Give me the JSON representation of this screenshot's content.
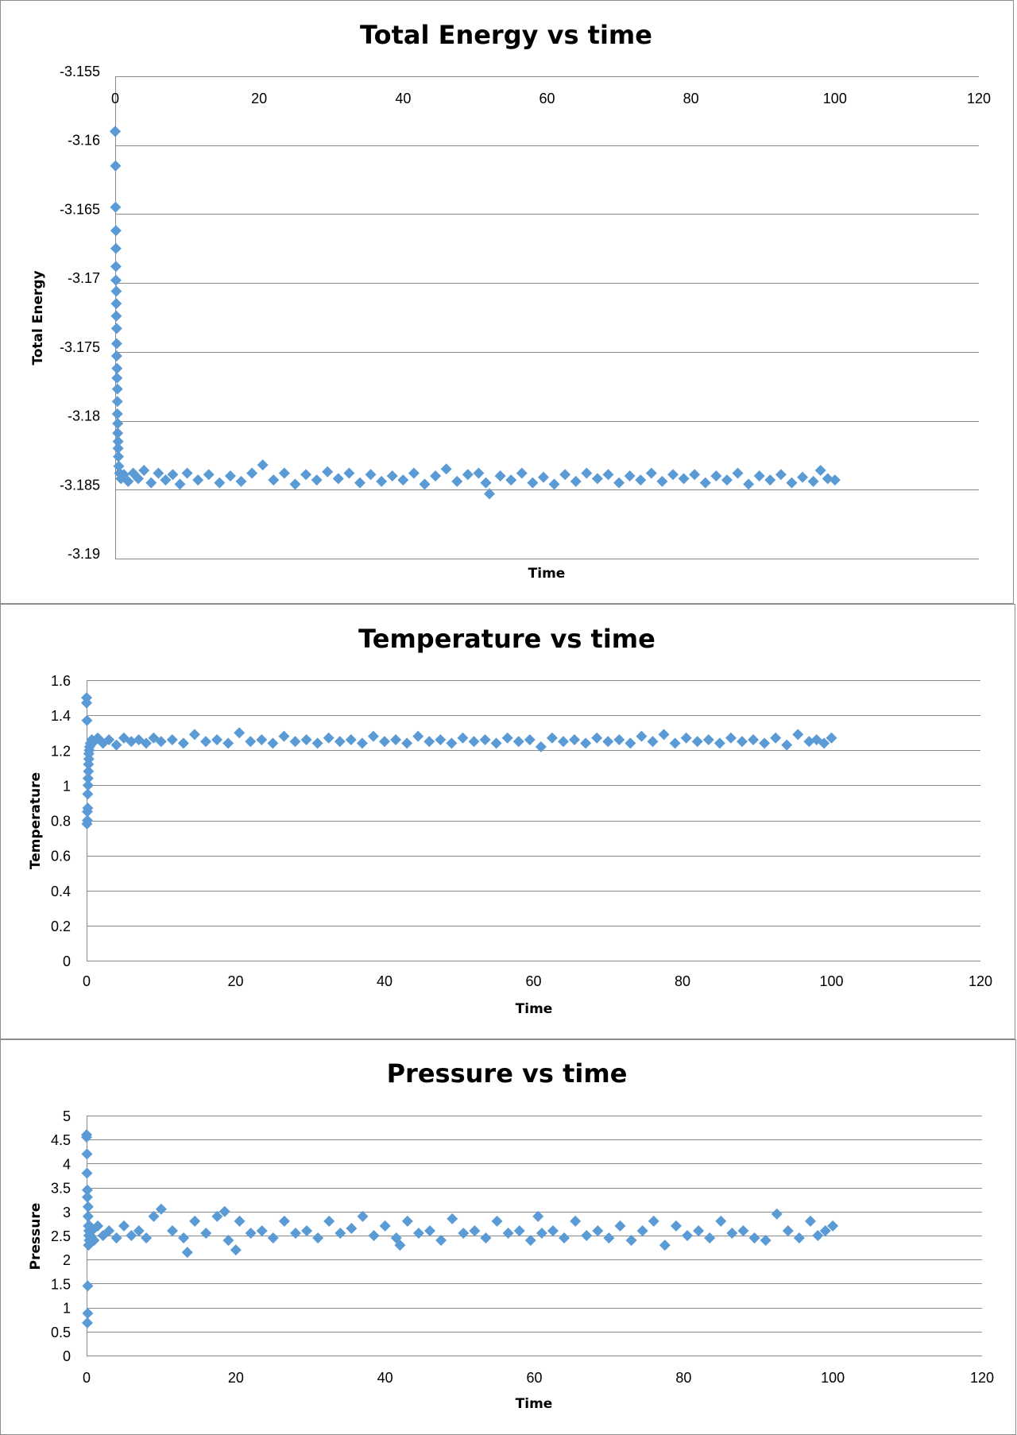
{
  "marker_color": "#5b9bd5",
  "chart_data": [
    {
      "type": "scatter",
      "title": "Total Energy vs time",
      "xlabel": "Time",
      "ylabel": "Total Energy",
      "xlim": [
        0,
        120
      ],
      "ylim": [
        -3.19,
        -3.155
      ],
      "x_ticks": [
        0,
        20,
        40,
        60,
        80,
        100,
        120
      ],
      "x_tick_labels": [
        "0",
        "20",
        "40",
        "60",
        "80",
        "100",
        "120"
      ],
      "y_ticks": [
        -3.155,
        -3.16,
        -3.165,
        -3.17,
        -3.175,
        -3.18,
        -3.185,
        -3.19
      ],
      "y_tick_labels": [
        "-3.155",
        "-3.16",
        "-3.165",
        "-3.17",
        "-3.175",
        "-3.18",
        "-3.185",
        "-3.19"
      ],
      "x_axis_position": "top",
      "grid": true,
      "series": [
        {
          "name": "Total Energy",
          "x": [
            0,
            0,
            0.05,
            0.05,
            0.1,
            0.1,
            0.1,
            0.1,
            0.15,
            0.15,
            0.15,
            0.2,
            0.2,
            0.2,
            0.25,
            0.25,
            0.3,
            0.3,
            0.3,
            0.35,
            0.35,
            0.4,
            0.4,
            0.45,
            0.5,
            0.6,
            0.8,
            1.2,
            1.8,
            2.5,
            3.2,
            4.0,
            5.0,
            6.0,
            7.0,
            8.0,
            9.0,
            10.0,
            11.5,
            13.0,
            14.5,
            16.0,
            17.5,
            19.0,
            20.5,
            22.0,
            23.5,
            25.0,
            26.5,
            28.0,
            29.5,
            31.0,
            32.5,
            34.0,
            35.5,
            37.0,
            38.5,
            40.0,
            41.5,
            43.0,
            44.5,
            46.0,
            47.5,
            49.0,
            50.5,
            51.5,
            52.0,
            53.5,
            55.0,
            56.5,
            58.0,
            59.5,
            61.0,
            62.5,
            64.0,
            65.5,
            67.0,
            68.5,
            70.0,
            71.5,
            73.0,
            74.5,
            76.0,
            77.5,
            79.0,
            80.5,
            82.0,
            83.5,
            85.0,
            86.5,
            88.0,
            89.5,
            91.0,
            92.5,
            94.0,
            95.5,
            97.0,
            98.0,
            99.0,
            100.0
          ],
          "y": [
            -3.159,
            -3.159,
            -3.1615,
            -3.1645,
            -3.1662,
            -3.1675,
            -3.1688,
            -3.1698,
            -3.1706,
            -3.1715,
            -3.1724,
            -3.1733,
            -3.1744,
            -3.1753,
            -3.1762,
            -3.1769,
            -3.1777,
            -3.1786,
            -3.1795,
            -3.1802,
            -3.1809,
            -3.1815,
            -3.182,
            -3.1826,
            -3.1833,
            -3.1838,
            -3.1842,
            -3.1839,
            -3.1844,
            -3.1838,
            -3.1842,
            -3.1836,
            -3.1845,
            -3.1838,
            -3.1843,
            -3.1839,
            -3.1846,
            -3.1838,
            -3.1843,
            -3.1839,
            -3.1845,
            -3.184,
            -3.1844,
            -3.1838,
            -3.1832,
            -3.1843,
            -3.1838,
            -3.1846,
            -3.1839,
            -3.1843,
            -3.1837,
            -3.1842,
            -3.1838,
            -3.1845,
            -3.1839,
            -3.1844,
            -3.184,
            -3.1843,
            -3.1838,
            -3.1846,
            -3.184,
            -3.1835,
            -3.1844,
            -3.1839,
            -3.1838,
            -3.1845,
            -3.1853,
            -3.184,
            -3.1843,
            -3.1838,
            -3.1845,
            -3.1841,
            -3.1846,
            -3.1839,
            -3.1844,
            -3.1838,
            -3.1842,
            -3.1839,
            -3.1845,
            -3.184,
            -3.1843,
            -3.1838,
            -3.1844,
            -3.1839,
            -3.1842,
            -3.1839,
            -3.1845,
            -3.184,
            -3.1843,
            -3.1838,
            -3.1846,
            -3.184,
            -3.1843,
            -3.1839,
            -3.1845,
            -3.1841,
            -3.1844,
            -3.1836,
            -3.1842,
            -3.1843
          ]
        }
      ]
    },
    {
      "type": "scatter",
      "title": "Temperature vs time",
      "xlabel": "Time",
      "ylabel": "Temperature",
      "xlim": [
        0,
        120
      ],
      "ylim": [
        0,
        1.6
      ],
      "x_ticks": [
        0,
        20,
        40,
        60,
        80,
        100,
        120
      ],
      "x_tick_labels": [
        "0",
        "20",
        "40",
        "60",
        "80",
        "100",
        "120"
      ],
      "y_ticks": [
        0,
        0.2,
        0.4,
        0.6,
        0.8,
        1,
        1.2,
        1.4,
        1.6
      ],
      "y_tick_labels": [
        "0",
        "0.2",
        "0.4",
        "0.6",
        "0.8",
        "1",
        "1.2",
        "1.4",
        "1.6"
      ],
      "x_axis_position": "bottom",
      "grid": true,
      "series": [
        {
          "name": "Temperature",
          "x": [
            0,
            0,
            0.05,
            0.05,
            0.1,
            0.1,
            0.15,
            0.15,
            0.2,
            0.2,
            0.25,
            0.25,
            0.3,
            0.3,
            0.35,
            0.4,
            0.5,
            0.7,
            1.0,
            1.5,
            2.2,
            3.0,
            4.0,
            5.0,
            6.0,
            7.0,
            8.0,
            9.0,
            10.0,
            11.5,
            13.0,
            14.5,
            16.0,
            17.5,
            19.0,
            20.5,
            22.0,
            23.5,
            25.0,
            26.5,
            28.0,
            29.5,
            31.0,
            32.5,
            34.0,
            35.5,
            37.0,
            38.5,
            40.0,
            41.5,
            43.0,
            44.5,
            46.0,
            47.5,
            49.0,
            50.5,
            52.0,
            53.5,
            55.0,
            56.5,
            58.0,
            59.5,
            61.0,
            62.5,
            64.0,
            65.5,
            67.0,
            68.5,
            70.0,
            71.5,
            73.0,
            74.5,
            76.0,
            77.5,
            79.0,
            80.5,
            82.0,
            83.5,
            85.0,
            86.5,
            88.0,
            89.5,
            91.0,
            92.5,
            94.0,
            95.5,
            97.0,
            98.0,
            99.0,
            100.0
          ],
          "y": [
            1.5,
            1.47,
            1.37,
            0.78,
            0.8,
            0.85,
            0.87,
            0.95,
            1.0,
            1.04,
            1.08,
            1.12,
            1.15,
            1.18,
            1.2,
            1.22,
            1.24,
            1.26,
            1.25,
            1.27,
            1.24,
            1.26,
            1.23,
            1.27,
            1.25,
            1.26,
            1.24,
            1.27,
            1.25,
            1.26,
            1.24,
            1.29,
            1.25,
            1.26,
            1.24,
            1.3,
            1.25,
            1.26,
            1.24,
            1.28,
            1.25,
            1.26,
            1.24,
            1.27,
            1.25,
            1.26,
            1.24,
            1.28,
            1.25,
            1.26,
            1.24,
            1.28,
            1.25,
            1.26,
            1.24,
            1.27,
            1.25,
            1.26,
            1.24,
            1.27,
            1.25,
            1.26,
            1.22,
            1.27,
            1.25,
            1.26,
            1.24,
            1.27,
            1.25,
            1.26,
            1.24,
            1.28,
            1.25,
            1.29,
            1.24,
            1.27,
            1.25,
            1.26,
            1.24,
            1.27,
            1.25,
            1.26,
            1.24,
            1.27,
            1.23,
            1.29,
            1.25,
            1.26,
            1.24,
            1.27
          ]
        }
      ]
    },
    {
      "type": "scatter",
      "title": "Pressure vs time",
      "xlabel": "Time",
      "ylabel": "Pressure",
      "xlim": [
        0,
        120
      ],
      "ylim": [
        0,
        5
      ],
      "x_ticks": [
        0,
        20,
        40,
        60,
        80,
        100,
        120
      ],
      "x_tick_labels": [
        "0",
        "20",
        "40",
        "60",
        "80",
        "100",
        "120"
      ],
      "y_ticks": [
        0,
        0.5,
        1,
        1.5,
        2,
        2.5,
        3,
        3.5,
        4,
        4.5,
        5
      ],
      "y_tick_labels": [
        "0",
        "0.5",
        "1",
        "1.5",
        "2",
        "2.5",
        "3",
        "3.5",
        "4",
        "4.5",
        "5"
      ],
      "x_axis_position": "bottom",
      "grid": true,
      "series": [
        {
          "name": "Pressure",
          "x": [
            0,
            0,
            0.05,
            0.05,
            0.1,
            0.1,
            0.1,
            0.15,
            0.15,
            0.2,
            0.2,
            0.25,
            0.25,
            0.3,
            0.3,
            0.35,
            0.4,
            0.5,
            0.7,
            1.0,
            1.5,
            2.2,
            3.0,
            4.0,
            5.0,
            6.0,
            7.0,
            8.0,
            9.0,
            10.0,
            11.5,
            13.0,
            13.5,
            14.5,
            16.0,
            17.5,
            18.5,
            19.0,
            20.0,
            20.5,
            22.0,
            23.5,
            25.0,
            26.5,
            28.0,
            29.5,
            31.0,
            32.5,
            34.0,
            35.5,
            37.0,
            38.5,
            40.0,
            41.5,
            42.0,
            43.0,
            44.5,
            46.0,
            47.5,
            49.0,
            50.5,
            52.0,
            53.5,
            55.0,
            56.5,
            58.0,
            59.5,
            60.5,
            61.0,
            62.5,
            64.0,
            65.5,
            67.0,
            68.5,
            70.0,
            71.5,
            73.0,
            74.5,
            76.0,
            77.5,
            79.0,
            80.5,
            82.0,
            83.5,
            85.0,
            86.5,
            88.0,
            89.5,
            91.0,
            92.5,
            94.0,
            95.5,
            97.0,
            98.0,
            99.0,
            100.0
          ],
          "y": [
            4.6,
            4.55,
            4.2,
            3.8,
            3.45,
            3.3,
            0.68,
            0.88,
            1.45,
            3.1,
            2.9,
            2.7,
            2.3,
            2.5,
            2.6,
            2.4,
            2.7,
            2.5,
            2.6,
            2.4,
            2.7,
            2.5,
            2.6,
            2.45,
            2.7,
            2.5,
            2.6,
            2.45,
            2.9,
            3.05,
            2.6,
            2.45,
            2.15,
            2.8,
            2.55,
            2.9,
            3.0,
            2.4,
            2.2,
            2.8,
            2.55,
            2.6,
            2.45,
            2.8,
            2.55,
            2.6,
            2.45,
            2.8,
            2.55,
            2.65,
            2.9,
            2.5,
            2.7,
            2.45,
            2.3,
            2.8,
            2.55,
            2.6,
            2.4,
            2.85,
            2.55,
            2.6,
            2.45,
            2.8,
            2.55,
            2.6,
            2.4,
            2.9,
            2.55,
            2.6,
            2.45,
            2.8,
            2.5,
            2.6,
            2.45,
            2.7,
            2.4,
            2.6,
            2.8,
            2.3,
            2.7,
            2.5,
            2.6,
            2.45,
            2.8,
            2.55,
            2.6,
            2.45,
            2.4,
            2.95,
            2.6,
            2.45,
            2.8,
            2.5,
            2.6,
            2.7
          ]
        }
      ]
    }
  ]
}
